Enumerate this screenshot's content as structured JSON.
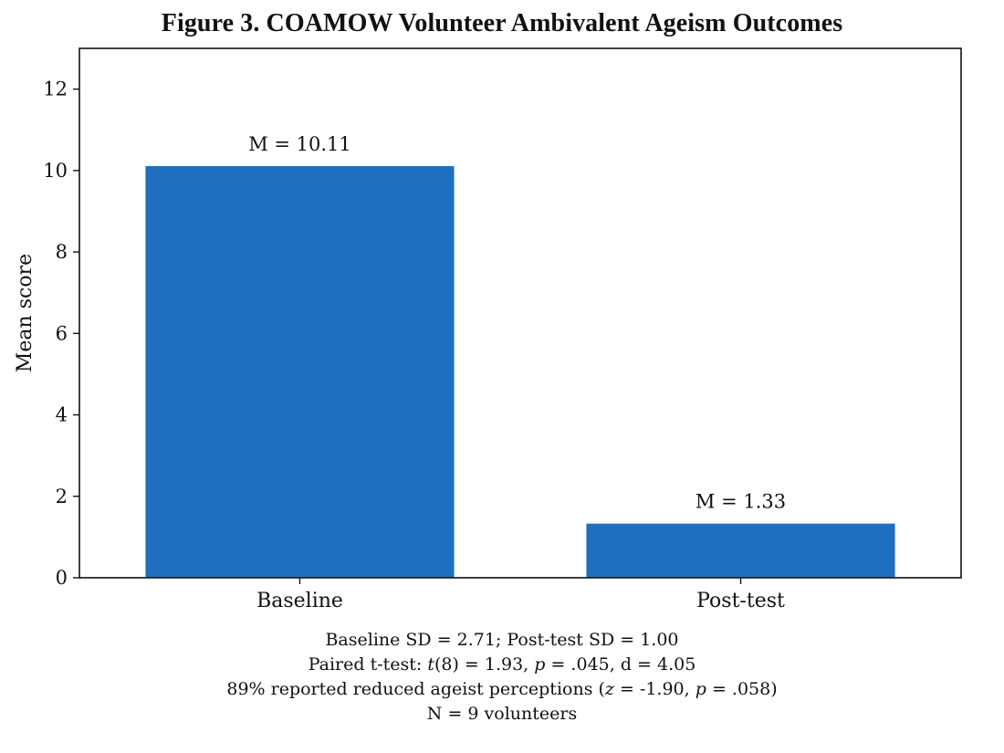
{
  "title": "Figure 3. COAMOW Volunteer Ambivalent Ageism Outcomes",
  "chart_data": {
    "type": "bar",
    "categories": [
      "Baseline",
      "Post-test"
    ],
    "values": [
      10.11,
      1.33
    ],
    "data_labels": [
      "M = 10.11",
      "M = 1.33"
    ],
    "xlabel": "",
    "ylabel": "Mean score",
    "ylim": [
      0,
      13
    ],
    "yticks": [
      0,
      2,
      4,
      6,
      8,
      10,
      12
    ],
    "grid": false,
    "bar_color": "#1f6fbf"
  },
  "notes": {
    "sd_line": "Baseline SD = 2.71; Post-test SD = 1.00",
    "ttest": {
      "prefix": "Paired t-test: ",
      "t": "t",
      "df_eq": "(8) = 1.93, ",
      "p": "p",
      "p_eq": " = .045, d = 4.05"
    },
    "reported": {
      "prefix": "89% reported reduced ageist perceptions (",
      "z": "z",
      "z_eq": " = -1.90, ",
      "p": "p",
      "p_eq": " = .058)"
    },
    "n_line": "N = 9 volunteers"
  }
}
